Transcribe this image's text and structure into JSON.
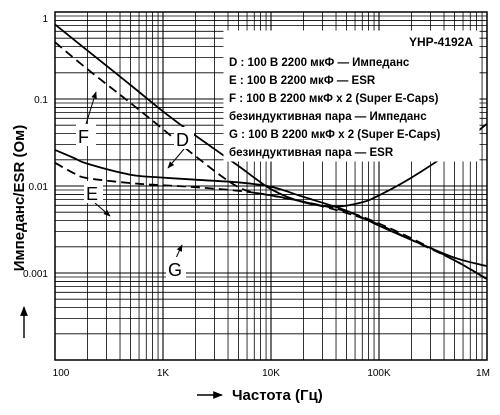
{
  "chart_data": {
    "type": "line",
    "title": "",
    "xlabel": "Частота (Гц)",
    "ylabel": "Импеданс/ESR (Ом)",
    "xscale": "log",
    "yscale": "log",
    "xlim": [
      100,
      1000000
    ],
    "ylim": [
      0.0001,
      1
    ],
    "grid": true,
    "x_ticks": [
      {
        "value": 100,
        "label": "100"
      },
      {
        "value": 1000,
        "label": "1K"
      },
      {
        "value": 10000,
        "label": "10K"
      },
      {
        "value": 100000,
        "label": "100K"
      },
      {
        "value": 1000000,
        "label": "1M"
      }
    ],
    "y_ticks": [
      {
        "value": 1,
        "label": "1"
      },
      {
        "value": 0.1,
        "label": "0.1"
      },
      {
        "value": 0.01,
        "label": "0.01"
      },
      {
        "value": 0.001,
        "label": "0.001"
      }
    ],
    "legend": {
      "placement": "top-right",
      "title": "YHP-4192A",
      "lines": [
        "D : 100 В 2200 мкФ — Импеданс",
        "E : 100 В 2200 мкФ — ESR",
        "F : 100 В 2200 мкФ x 2 (Super E-Caps)",
        "безиндуктивная пара — Импеданс",
        "G : 100 В 2200 мкФ x 2 (Super E-Caps)",
        "безиндуктивная пара — ESR"
      ]
    },
    "series": [
      {
        "name": "D",
        "style": "solid",
        "points": [
          [
            100,
            0.72
          ],
          [
            200,
            0.36
          ],
          [
            500,
            0.145
          ],
          [
            1000,
            0.072
          ],
          [
            2000,
            0.038
          ],
          [
            5000,
            0.017
          ],
          [
            10000,
            0.0092
          ],
          [
            20000,
            0.0065
          ],
          [
            40000,
            0.0058
          ],
          [
            70000,
            0.0065
          ],
          [
            100000,
            0.0078
          ],
          [
            200000,
            0.0125
          ],
          [
            500000,
            0.0265
          ],
          [
            1000000,
            0.052
          ]
        ]
      },
      {
        "name": "E",
        "style": "solid",
        "points": [
          [
            100,
            0.026
          ],
          [
            150,
            0.021
          ],
          [
            200,
            0.018
          ],
          [
            500,
            0.0135
          ],
          [
            1000,
            0.0125
          ],
          [
            2000,
            0.0118
          ],
          [
            5000,
            0.011
          ],
          [
            10000,
            0.0098
          ],
          [
            20000,
            0.0075
          ],
          [
            50000,
            0.0052
          ],
          [
            100000,
            0.0035
          ],
          [
            200000,
            0.0024
          ],
          [
            500000,
            0.0015
          ],
          [
            1000000,
            0.0012
          ]
        ]
      },
      {
        "name": "F",
        "style": "dashed",
        "points": [
          [
            100,
            0.45
          ],
          [
            200,
            0.22
          ],
          [
            500,
            0.09
          ],
          [
            1000,
            0.045
          ],
          [
            2000,
            0.022
          ],
          [
            5000,
            0.0097
          ],
          [
            10000,
            0.0078
          ],
          [
            20000,
            0.0066
          ],
          [
            50000,
            0.0051
          ],
          [
            100000,
            0.0037
          ],
          [
            200000,
            0.0025
          ],
          [
            500000,
            0.0014
          ],
          [
            1000000,
            0.00085
          ]
        ]
      },
      {
        "name": "G",
        "style": "dashed",
        "points": [
          [
            100,
            0.0185
          ],
          [
            150,
            0.014
          ],
          [
            200,
            0.0123
          ],
          [
            500,
            0.0108
          ],
          [
            1000,
            0.0102
          ],
          [
            2000,
            0.0097
          ],
          [
            5000,
            0.0088
          ],
          [
            10000,
            0.0078
          ],
          [
            20000,
            0.0066
          ],
          [
            50000,
            0.0049
          ],
          [
            100000,
            0.0036
          ],
          [
            200000,
            0.0024
          ],
          [
            500000,
            0.0014
          ],
          [
            1000000,
            0.00085
          ]
        ]
      }
    ],
    "annotations": [
      {
        "text": "D",
        "series": "D"
      },
      {
        "text": "E",
        "series": "E"
      },
      {
        "text": "F",
        "series": "F"
      },
      {
        "text": "G",
        "series": "G"
      }
    ]
  }
}
